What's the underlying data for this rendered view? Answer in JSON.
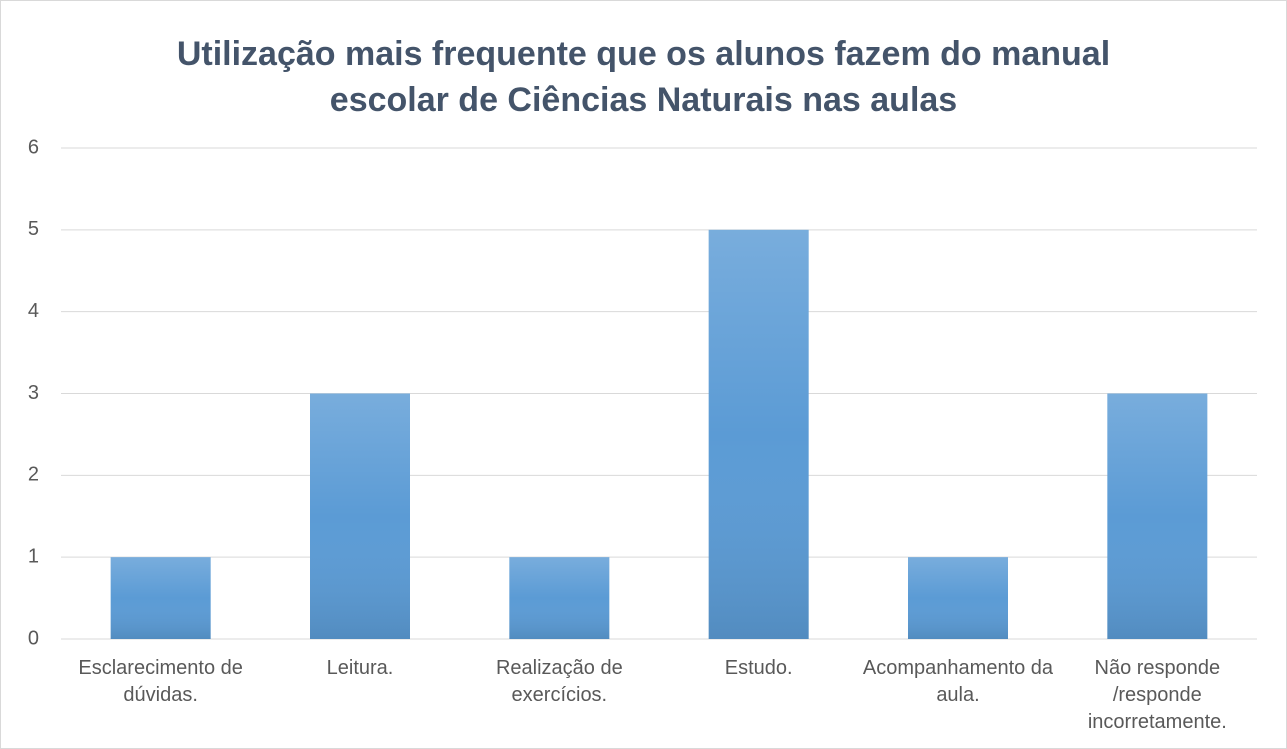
{
  "chart_data": {
    "type": "bar",
    "title": "Utilização mais frequente que os alunos fazem do manual escolar de Ciências Naturais  nas aulas",
    "categories": [
      "Esclarecimento de dúvidas.",
      "Leitura.",
      "Realização de exercícios.",
      "Estudo.",
      "Acompanhamento da aula.",
      "Não responde /responde incorretamente."
    ],
    "values": [
      1,
      3,
      1,
      5,
      1,
      3
    ],
    "color": "#5b9bd5",
    "ylim": [
      0,
      6
    ],
    "yticks": [
      0,
      1,
      2,
      3,
      4,
      5,
      6
    ],
    "grid": true
  }
}
